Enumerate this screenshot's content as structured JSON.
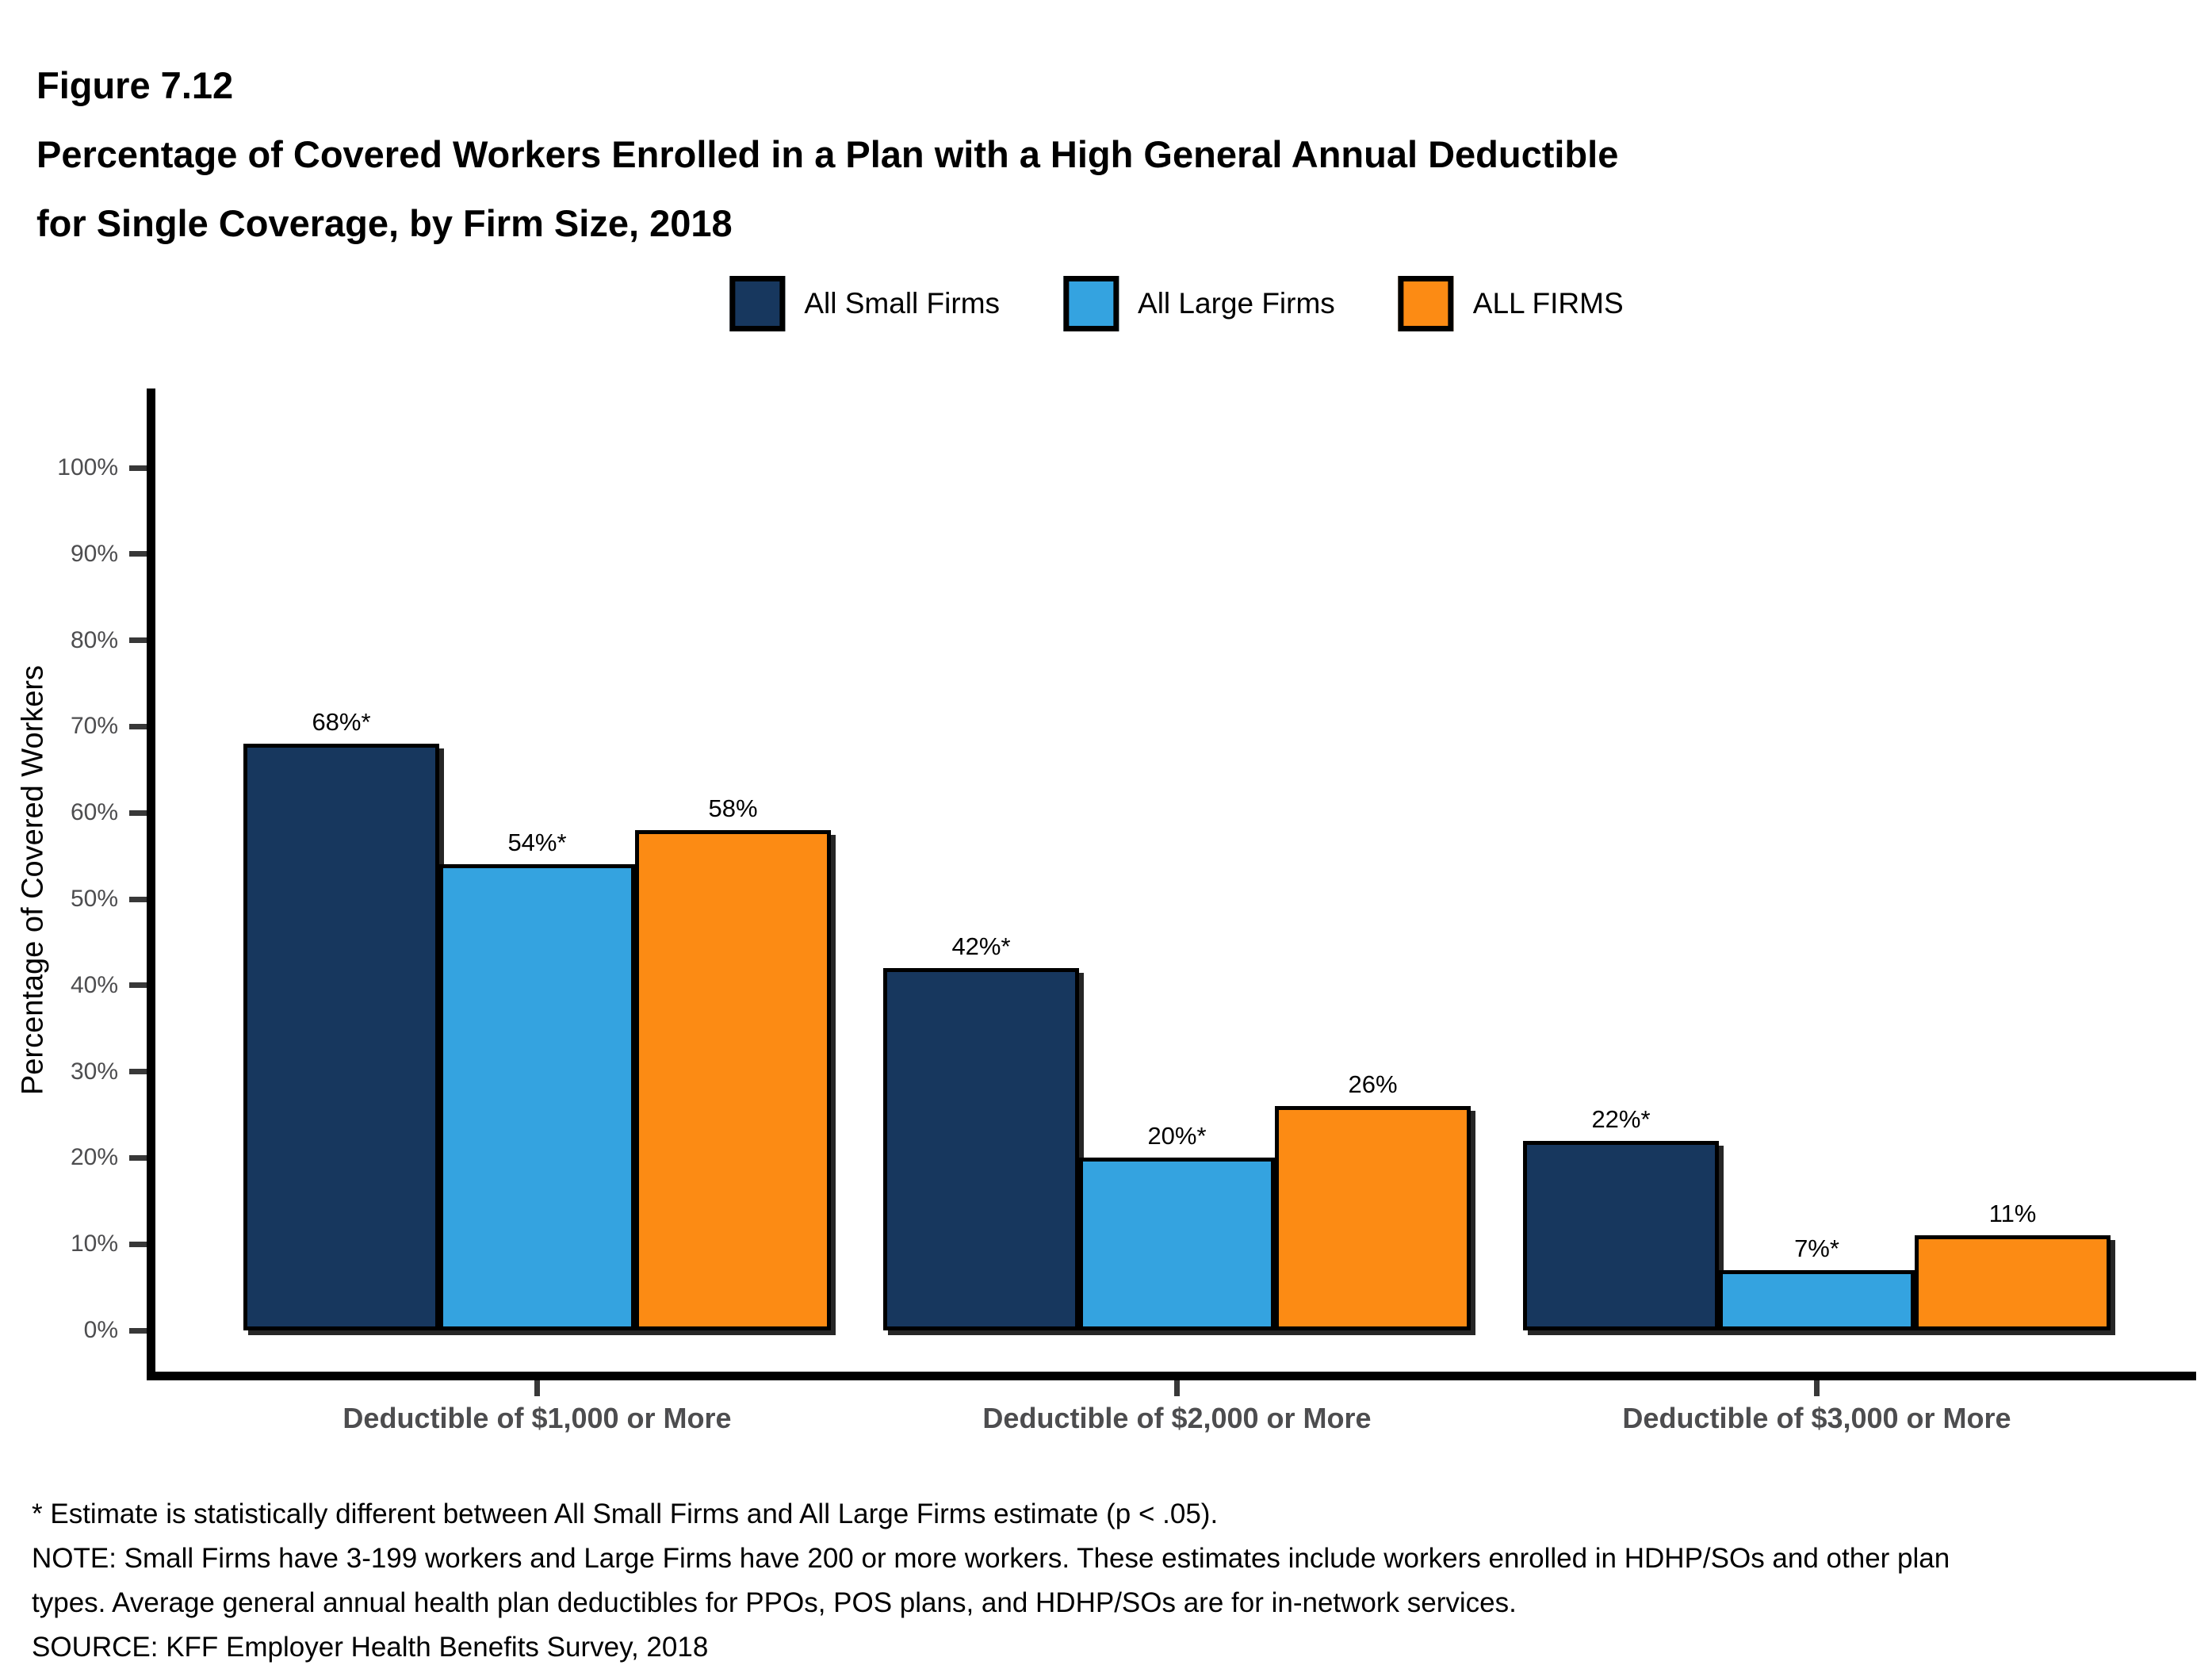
{
  "header": {
    "figure_label": "Figure 7.12",
    "title_line1": "Percentage of Covered Workers Enrolled in a Plan with a High General Annual Deductible",
    "title_line2": "for Single Coverage, by Firm Size, 2018"
  },
  "legend": {
    "items": [
      {
        "label": "All Small Firms",
        "color": "#17375E"
      },
      {
        "label": "All Large Firms",
        "color": "#34A3E0"
      },
      {
        "label": "ALL FIRMS",
        "color": "#FC8B14"
      }
    ]
  },
  "chart_data": {
    "type": "bar",
    "title": "Percentage of Covered Workers Enrolled in a Plan with a High General Annual Deductible for Single Coverage, by Firm Size, 2018",
    "categories": [
      "Deductible of $1,000 or More",
      "Deductible of $2,000 or More",
      "Deductible of $3,000 or More"
    ],
    "series": [
      {
        "name": "All Small Firms",
        "color": "#17375E",
        "values": [
          68,
          42,
          22
        ],
        "data_labels": [
          "68%*",
          "42%*",
          "22%*"
        ]
      },
      {
        "name": "All Large Firms",
        "color": "#34A3E0",
        "values": [
          54,
          20,
          7
        ],
        "data_labels": [
          "54%*",
          "20%*",
          "7%*"
        ]
      },
      {
        "name": "ALL FIRMS",
        "color": "#FC8B14",
        "values": [
          58,
          26,
          11
        ],
        "data_labels": [
          "58%",
          "26%",
          "11%"
        ]
      }
    ],
    "xlabel": "",
    "ylabel": "Percentage of Covered Workers",
    "ylim": [
      0,
      100
    ],
    "ytick_step": 10,
    "ytick_labels": [
      "0%",
      "10%",
      "20%",
      "30%",
      "40%",
      "50%",
      "60%",
      "70%",
      "80%",
      "90%",
      "100%"
    ],
    "grid": false,
    "legend_position": "top",
    "bar_annotation_note": "* indicates estimate statistically different between All Small Firms and All Large Firms"
  },
  "footnotes": {
    "lines": [
      "* Estimate is statistically different between All Small Firms and All Large Firms estimate (p < .05).",
      "NOTE: Small Firms have 3-199 workers and Large Firms have 200 or more workers. These estimates include workers enrolled in HDHP/SOs and other plan",
      "types. Average general annual health plan deductibles for PPOs, POS plans, and HDHP/SOs are for in-network services.",
      "SOURCE: KFF Employer Health Benefits Survey, 2018"
    ]
  }
}
